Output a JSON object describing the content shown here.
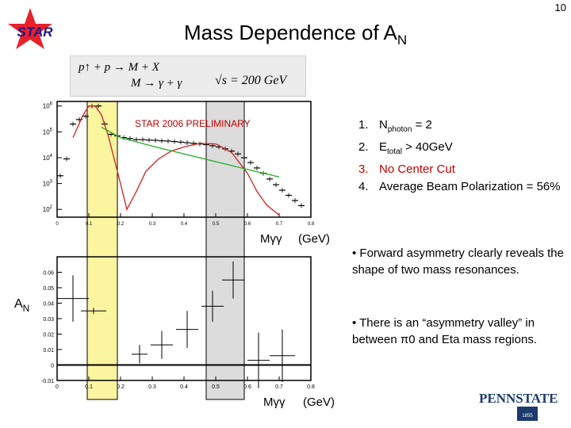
{
  "page_number": "10",
  "title": {
    "main": "Mass Dependence of A",
    "sub": "N"
  },
  "logo": {
    "text": "STAR",
    "star_color": "#e8202a",
    "text_color": "#1a1a8c"
  },
  "formula": {
    "line1": "p↑ + p → M + X",
    "line2": "M → γ + γ",
    "energy": "√s = 200 GeV"
  },
  "conditions": [
    {
      "num": "1.",
      "parts": [
        {
          "t": "N"
        },
        {
          "sub": "photon"
        },
        {
          "t": " = 2"
        }
      ],
      "color": "#000000"
    },
    {
      "num": "2.",
      "parts": [
        {
          "t": "E"
        },
        {
          "sub": "total"
        },
        {
          "t": " > 40GeV"
        }
      ],
      "color": "#000000"
    },
    {
      "num": "3.",
      "parts": [
        {
          "t": "No Center Cut"
        }
      ],
      "color": "#c00000"
    },
    {
      "num": "4.",
      "parts": [
        {
          "t": "Average Beam Polarization = 56%"
        }
      ],
      "color": "#000000"
    }
  ],
  "bullets": [
    "• Forward asymmetry clearly reveals the shape of two mass resonances.",
    "• There is an “asymmetry valley” in between π0 and Eta mass regions."
  ],
  "pennstate": {
    "name": "PENNSTATE",
    "year": "1855"
  },
  "chart_data": [
    {
      "type": "histogram",
      "annotation": "STAR 2006 PRELIMINARY",
      "xlabel": "Mγγ (GeV)",
      "ylabel": "",
      "xlim": [
        0,
        0.8
      ],
      "ylim_log": [
        50,
        1500000
      ],
      "log_y": true,
      "xticks": [
        "0",
        "0.1",
        "0.2",
        "0.3",
        "0.4",
        "0.5",
        "0.6",
        "0.7",
        "0.8"
      ],
      "yticks": [
        "10^2",
        "10^3",
        "10^4",
        "10^5",
        "10^6"
      ],
      "highlight_bands": [
        {
          "x0": 0.095,
          "x1": 0.19,
          "color": "#fbf5a0"
        },
        {
          "x0": 0.47,
          "x1": 0.59,
          "color": "#dcdcdc"
        }
      ],
      "data": {
        "x": [
          0.01,
          0.03,
          0.05,
          0.07,
          0.09,
          0.11,
          0.13,
          0.15,
          0.17,
          0.19,
          0.21,
          0.23,
          0.25,
          0.27,
          0.29,
          0.31,
          0.33,
          0.35,
          0.37,
          0.39,
          0.41,
          0.43,
          0.45,
          0.47,
          0.49,
          0.51,
          0.53,
          0.55,
          0.57,
          0.59,
          0.61,
          0.63,
          0.65,
          0.67,
          0.69,
          0.71,
          0.73,
          0.75,
          0.77
        ],
        "y": [
          2000,
          9000,
          200000,
          300000,
          400000,
          1000000,
          1000000,
          200000,
          80000,
          70000,
          60000,
          55000,
          50000,
          50000,
          48000,
          47000,
          45000,
          44000,
          42000,
          40000,
          38000,
          36000,
          34000,
          32000,
          29000,
          26000,
          22000,
          18000,
          14000,
          10000,
          6500,
          4000,
          2500,
          1500,
          900,
          550,
          350,
          220,
          140
        ]
      },
      "fits": [
        {
          "color": "#d02020",
          "x": [
            0.05,
            0.08,
            0.1,
            0.12,
            0.14,
            0.16,
            0.19,
            0.22,
            0.25,
            0.28,
            0.32,
            0.36,
            0.4,
            0.45,
            0.5,
            0.55,
            0.6,
            0.63,
            0.66,
            0.7
          ],
          "y": [
            60000,
            400000,
            1000000,
            1000000,
            450000,
            80000,
            3000,
            100,
            500,
            3000,
            9000,
            18000,
            26000,
            36000,
            34000,
            16000,
            2500,
            500,
            150,
            60
          ]
        },
        {
          "color": "#20b020",
          "x": [
            0.14,
            0.2,
            0.3,
            0.4,
            0.5,
            0.6,
            0.7
          ],
          "y": [
            150000,
            60000,
            28000,
            14000,
            7000,
            3500,
            1800
          ]
        }
      ]
    },
    {
      "type": "scatter",
      "xlabel": "Mγγ (GeV)",
      "ylabel": "AN",
      "xlim": [
        0,
        0.8
      ],
      "ylim": [
        -0.01,
        0.07
      ],
      "xticks": [
        "0",
        "0.1",
        "0.2",
        "0.3",
        "0.4",
        "0.5",
        "0.6",
        "0.7",
        "0.8"
      ],
      "yticks": [
        "-0.01",
        "0",
        "0.01",
        "0.02",
        "0.03",
        "0.04",
        "0.05",
        "0.06"
      ],
      "highlight_bands": [
        {
          "x0": 0.095,
          "x1": 0.19,
          "color": "#fbf5a0"
        },
        {
          "x0": 0.47,
          "x1": 0.59,
          "color": "#dcdcdc"
        }
      ],
      "points": [
        {
          "x": 0.05,
          "y": 0.043,
          "xerr": 0.05,
          "yerr": 0.015
        },
        {
          "x": 0.115,
          "y": 0.035,
          "xerr": 0.04,
          "yerr": 0.002
        },
        {
          "x": 0.26,
          "y": 0.007,
          "xerr": 0.025,
          "yerr": 0.006
        },
        {
          "x": 0.33,
          "y": 0.013,
          "xerr": 0.035,
          "yerr": 0.009
        },
        {
          "x": 0.41,
          "y": 0.023,
          "xerr": 0.035,
          "yerr": 0.012
        },
        {
          "x": 0.49,
          "y": 0.038,
          "xerr": 0.035,
          "yerr": 0.01
        },
        {
          "x": 0.555,
          "y": 0.055,
          "xerr": 0.035,
          "yerr": 0.012
        },
        {
          "x": 0.635,
          "y": 0.003,
          "xerr": 0.035,
          "yerr": 0.018
        },
        {
          "x": 0.71,
          "y": 0.006,
          "xerr": 0.04,
          "yerr": 0.017
        }
      ]
    }
  ]
}
